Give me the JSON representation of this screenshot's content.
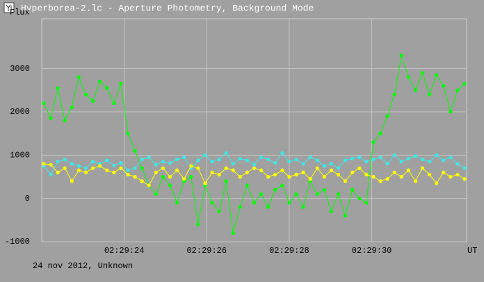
{
  "window": {
    "title": "Hyperborea-2.lc - Aperture Photometry, Background Mode"
  },
  "chart_data": {
    "type": "line",
    "y_label": "Flux",
    "x_label": "UT",
    "footer": "24 nov 2012, Unknown",
    "xlim": [
      22,
      32.3
    ],
    "xticks": [
      {
        "value": 24,
        "label": "02:29:24"
      },
      {
        "value": 26,
        "label": "02:29:26"
      },
      {
        "value": 28,
        "label": "02:29:28"
      },
      {
        "value": 30,
        "label": "02:29:30"
      }
    ],
    "ylim": [
      -1000,
      4150
    ],
    "yticks": [
      -1000,
      0,
      1000,
      2000,
      3000
    ],
    "grid": true,
    "x": [
      22.05,
      22.22,
      22.39,
      22.56,
      22.73,
      22.9,
      23.07,
      23.24,
      23.41,
      23.58,
      23.75,
      23.92,
      24.09,
      24.26,
      24.43,
      24.6,
      24.77,
      24.94,
      25.11,
      25.28,
      25.45,
      25.62,
      25.79,
      25.96,
      26.13,
      26.3,
      26.47,
      26.64,
      26.81,
      26.98,
      27.15,
      27.32,
      27.49,
      27.66,
      27.83,
      28.0,
      28.17,
      28.34,
      28.51,
      28.68,
      28.85,
      29.02,
      29.19,
      29.36,
      29.53,
      29.7,
      29.87,
      30.04,
      30.21,
      30.38,
      30.55,
      30.72,
      30.89,
      31.06,
      31.23,
      31.4,
      31.57,
      31.74,
      31.91,
      32.08,
      32.25
    ],
    "series": [
      {
        "color": "#00ff00",
        "values": [
          2200,
          1850,
          2550,
          1800,
          2100,
          2800,
          2400,
          2250,
          2700,
          2550,
          2200,
          2650,
          1500,
          1100,
          700,
          300,
          100,
          500,
          300,
          -100,
          400,
          500,
          -600,
          300,
          -100,
          -300,
          400,
          -800,
          -200,
          300,
          -100,
          100,
          -200,
          200,
          300,
          -100,
          100,
          -200,
          400,
          100,
          200,
          -300,
          100,
          -400,
          200,
          0,
          -100,
          1300,
          1500,
          1900,
          2400,
          3300,
          2800,
          2500,
          2900,
          2400,
          2850,
          2600,
          2000,
          2500,
          2650
        ]
      },
      {
        "color": "#40e6e6",
        "values": [
          750,
          550,
          850,
          900,
          800,
          750,
          700,
          850,
          800,
          880,
          760,
          820,
          650,
          700,
          900,
          950,
          780,
          850,
          820,
          900,
          950,
          700,
          880,
          1000,
          850,
          900,
          1050,
          800,
          920,
          880,
          780,
          950,
          900,
          820,
          1050,
          850,
          900,
          800,
          950,
          880,
          750,
          800,
          700,
          880,
          920,
          950,
          850,
          900,
          950,
          800,
          1000,
          850,
          920,
          980,
          900,
          850,
          1000,
          880,
          950,
          800,
          700
        ]
      },
      {
        "color": "#ffff00",
        "values": [
          800,
          780,
          600,
          700,
          400,
          650,
          600,
          700,
          750,
          650,
          600,
          700,
          550,
          500,
          400,
          300,
          600,
          700,
          500,
          650,
          450,
          750,
          700,
          350,
          600,
          550,
          700,
          650,
          500,
          600,
          700,
          650,
          500,
          550,
          650,
          500,
          550,
          600,
          450,
          700,
          500,
          650,
          550,
          400,
          600,
          700,
          550,
          500,
          400,
          450,
          600,
          500,
          650,
          400,
          700,
          550,
          350,
          600,
          500,
          550,
          450
        ]
      }
    ]
  }
}
